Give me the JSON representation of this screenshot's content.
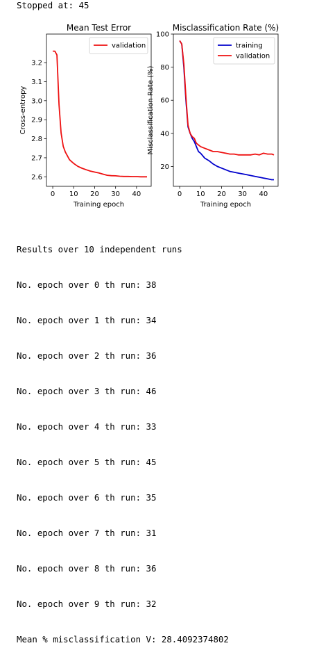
{
  "stopped_text": "Stopped at: 45",
  "colors": {
    "training": "#0000cc",
    "validation": "#ee1111",
    "axes": "#000000"
  },
  "chart_data": [
    {
      "type": "line",
      "title": "Mean Test Error",
      "xlabel": "Training epoch",
      "ylabel": "Cross-entropy",
      "xlim": [
        -3,
        47
      ],
      "ylim": [
        2.55,
        3.35
      ],
      "xticks": [
        0,
        10,
        20,
        30,
        40
      ],
      "yticks": [
        2.6,
        2.7,
        2.8,
        2.9,
        3.0,
        3.1,
        3.2
      ],
      "ytick_labels": [
        "2.6",
        "2.7",
        "2.8",
        "2.9",
        "3.0",
        "3.1",
        "3.2"
      ],
      "legend_location": "top-right",
      "series": [
        {
          "name": "validation",
          "color": "#ee1111",
          "x": [
            0,
            1,
            2,
            3,
            4,
            5,
            6,
            7,
            8,
            9,
            10,
            12,
            14,
            16,
            18,
            20,
            22,
            24,
            26,
            28,
            30,
            32,
            34,
            36,
            38,
            40,
            42,
            44,
            45
          ],
          "y": [
            3.26,
            3.26,
            3.24,
            2.98,
            2.83,
            2.76,
            2.73,
            2.71,
            2.69,
            2.68,
            2.67,
            2.655,
            2.645,
            2.637,
            2.63,
            2.625,
            2.62,
            2.614,
            2.608,
            2.606,
            2.605,
            2.603,
            2.602,
            2.602,
            2.601,
            2.601,
            2.6,
            2.6,
            2.6
          ]
        }
      ]
    },
    {
      "type": "line",
      "title": "Misclassification Rate (%)",
      "xlabel": "Training epoch",
      "ylabel": "Misclassification Rate (%)",
      "xlim": [
        -3,
        47
      ],
      "ylim": [
        8,
        100
      ],
      "xticks": [
        0,
        10,
        20,
        30,
        40
      ],
      "yticks": [
        20,
        40,
        60,
        80,
        100
      ],
      "ytick_labels": [
        "20",
        "40",
        "60",
        "80",
        "100"
      ],
      "legend_location": "top-right",
      "series": [
        {
          "name": "training",
          "color": "#0000cc",
          "x": [
            0,
            1,
            2,
            3,
            4,
            5,
            6,
            7,
            8,
            9,
            10,
            12,
            14,
            16,
            18,
            20,
            22,
            24,
            26,
            28,
            30,
            32,
            34,
            36,
            38,
            40,
            42,
            44,
            45
          ],
          "y": [
            96,
            94,
            80,
            60,
            44,
            40,
            37,
            35,
            32,
            29,
            28,
            25,
            23.5,
            21.5,
            20,
            19,
            18,
            17,
            16.5,
            16,
            15.5,
            15,
            14.5,
            14,
            13.5,
            13,
            12.5,
            12,
            12
          ]
        },
        {
          "name": "validation",
          "color": "#ee1111",
          "x": [
            0,
            1,
            2,
            3,
            4,
            5,
            6,
            7,
            8,
            9,
            10,
            12,
            14,
            16,
            18,
            20,
            22,
            24,
            26,
            28,
            30,
            32,
            34,
            36,
            38,
            40,
            42,
            44,
            45
          ],
          "y": [
            96,
            94,
            82,
            62,
            45,
            40,
            38,
            37,
            34,
            33,
            32,
            31,
            30,
            29,
            29,
            28.5,
            28,
            27.5,
            27.5,
            27,
            27,
            27,
            27,
            27.5,
            27,
            28,
            27.5,
            27.5,
            27
          ]
        }
      ]
    }
  ],
  "results": {
    "header": "Results over 10 independent runs",
    "runs": [
      "No. epoch over 0 th run: 38",
      "No. epoch over 1 th run: 34",
      "No. epoch over 2 th run: 36",
      "No. epoch over 3 th run: 46",
      "No. epoch over 4 th run: 33",
      "No. epoch over 5 th run: 45",
      "No. epoch over 6 th run: 35",
      "No. epoch over 7 th run: 31",
      "No. epoch over 8 th run: 36",
      "No. epoch over 9 th run: 32"
    ],
    "mean": "Mean % misclassification V: 28.4092374802"
  }
}
